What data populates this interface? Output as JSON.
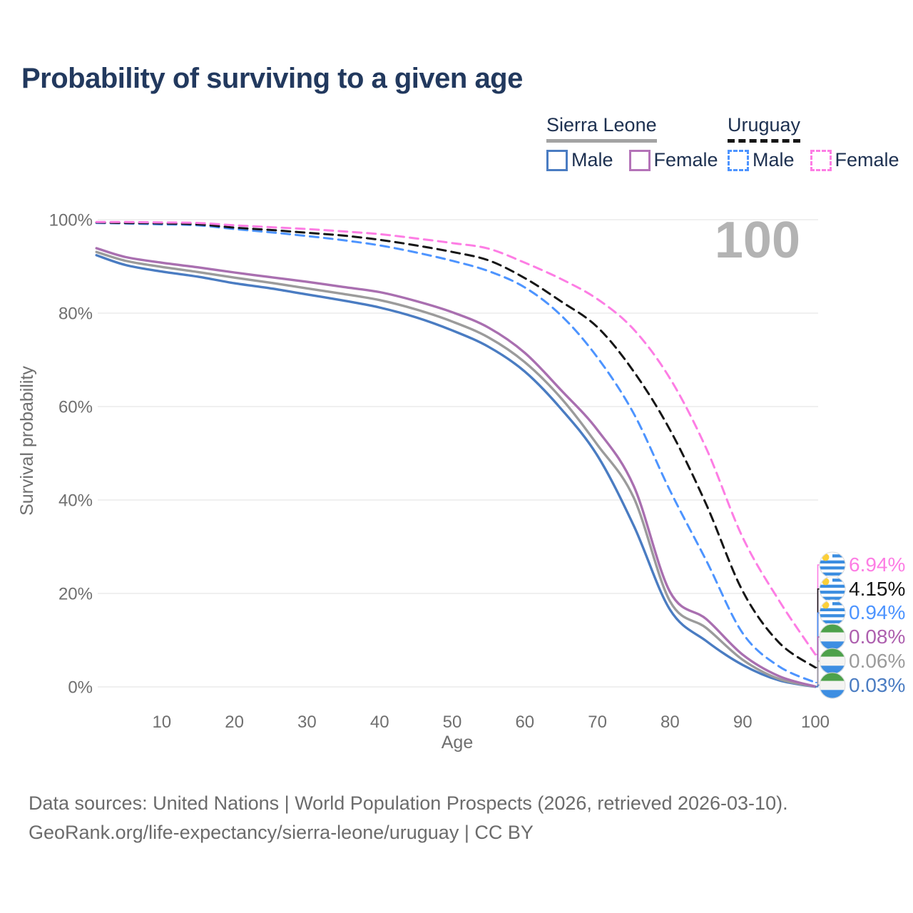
{
  "title": "Probability of surviving to a given age",
  "legend": {
    "groups": [
      {
        "id": "sierra-leone",
        "label": "Sierra Leone",
        "line_style": "solid",
        "underline_color": "#a3a3a3",
        "items": [
          {
            "label": "Male",
            "color": "#4a7cc2"
          },
          {
            "label": "Female",
            "color": "#b473b8"
          }
        ]
      },
      {
        "id": "uruguay",
        "label": "Uruguay",
        "line_style": "dashed",
        "underline_color": "#161616",
        "items": [
          {
            "label": "Male",
            "color": "#4d94ff"
          },
          {
            "label": "Female",
            "color": "#fd7de4"
          }
        ]
      }
    ]
  },
  "watermark": "100",
  "chart_data": {
    "type": "line",
    "title": "Probability of surviving to a given age",
    "xlabel": "Age",
    "ylabel": "Survival probability",
    "xlim": [
      0,
      100
    ],
    "ylim": [
      0,
      100
    ],
    "grid": "horizontal-only",
    "grid_color": "#e7e7e7",
    "axis_text_color": "#6f6f6f",
    "legend_position": "top-right",
    "x": [
      1,
      5,
      10,
      15,
      20,
      25,
      30,
      35,
      40,
      45,
      50,
      55,
      60,
      65,
      70,
      75,
      80,
      85,
      90,
      95,
      100
    ],
    "xticks": [
      10,
      20,
      30,
      40,
      50,
      60,
      70,
      80,
      90,
      100
    ],
    "yticks": [
      {
        "value": 0,
        "label": "0%"
      },
      {
        "value": 20,
        "label": "20%"
      },
      {
        "value": 40,
        "label": "40%"
      },
      {
        "value": 60,
        "label": "60%"
      },
      {
        "value": 80,
        "label": "80%"
      },
      {
        "value": 100,
        "label": "100%"
      }
    ],
    "series": [
      {
        "name": "Sierra Leone Male",
        "country": "Sierra Leone",
        "sex": "Male",
        "color": "#4a7cc2",
        "dash": false,
        "values": [
          92.4,
          90.3,
          88.9,
          87.8,
          86.4,
          85.3,
          84.0,
          82.7,
          81.2,
          79.1,
          76.3,
          72.8,
          67.5,
          59.5,
          49.5,
          34.5,
          16.5,
          9.8,
          4.7,
          1.4,
          0.03
        ]
      },
      {
        "name": "Sierra Leone (both sexes)",
        "country": "Sierra Leone",
        "sex": "Both",
        "color": "#9b9b9b",
        "dash": false,
        "values": [
          93.1,
          91.2,
          89.9,
          88.8,
          87.6,
          86.5,
          85.3,
          84.1,
          82.8,
          80.8,
          78.2,
          74.8,
          69.5,
          61.8,
          51.8,
          40.5,
          18.3,
          12.6,
          5.8,
          1.7,
          0.06
        ]
      },
      {
        "name": "Sierra Leone Female",
        "country": "Sierra Leone",
        "sex": "Female",
        "color": "#a96fb0",
        "dash": false,
        "values": [
          93.9,
          92.0,
          90.8,
          89.8,
          88.7,
          87.7,
          86.7,
          85.6,
          84.5,
          82.6,
          80.2,
          76.9,
          71.5,
          63.5,
          55.0,
          43.0,
          20.3,
          14.5,
          6.9,
          2.3,
          0.08
        ]
      },
      {
        "name": "Uruguay Male",
        "country": "Uruguay",
        "sex": "Male",
        "color": "#4d94ff",
        "dash": true,
        "values": [
          99.3,
          99.2,
          99.0,
          98.8,
          98.0,
          97.3,
          96.5,
          95.6,
          94.5,
          93.0,
          91.2,
          89.0,
          85.5,
          79.5,
          70.5,
          58.5,
          42.0,
          27.0,
          11.5,
          4.4,
          0.94
        ]
      },
      {
        "name": "Uruguay (both sexes)",
        "country": "Uruguay",
        "sex": "Both",
        "color": "#161616",
        "dash": true,
        "values": [
          99.4,
          99.3,
          99.2,
          99.0,
          98.3,
          97.8,
          97.2,
          96.6,
          95.7,
          94.5,
          93.1,
          91.3,
          87.5,
          82.5,
          77.0,
          67.5,
          55.0,
          39.0,
          20.5,
          9.5,
          4.15
        ]
      },
      {
        "name": "Uruguay Female",
        "country": "Uruguay",
        "sex": "Female",
        "color": "#fd7de4",
        "dash": true,
        "values": [
          99.5,
          99.5,
          99.4,
          99.3,
          98.8,
          98.4,
          98.0,
          97.5,
          96.9,
          96.0,
          95.0,
          93.8,
          90.8,
          87.3,
          83.0,
          76.5,
          66.0,
          51.0,
          32.0,
          18.5,
          6.94
        ]
      }
    ],
    "end_labels": [
      {
        "series": "Uruguay Female",
        "text": "6.94%",
        "value": 6.94,
        "color": "#fd7de4",
        "flag": "uruguay"
      },
      {
        "series": "Uruguay (both sexes)",
        "text": "4.15%",
        "value": 4.15,
        "color": "#161616",
        "flag": "uruguay"
      },
      {
        "series": "Uruguay Male",
        "text": "0.94%",
        "value": 0.94,
        "color": "#4d94ff",
        "flag": "uruguay"
      },
      {
        "series": "Sierra Leone Female",
        "text": "0.08%",
        "value": 0.08,
        "color": "#ad5fae",
        "flag": "sierra-leone"
      },
      {
        "series": "Sierra Leone (both sexes)",
        "text": "0.06%",
        "value": 0.06,
        "color": "#9b9b9b",
        "flag": "sierra-leone"
      },
      {
        "series": "Sierra Leone Male",
        "text": "0.03%",
        "value": 0.03,
        "color": "#4a7cc2",
        "flag": "sierra-leone"
      }
    ]
  },
  "footer": {
    "line1": "Data sources: United Nations | World Population Prospects (2026, retrieved 2026-03-10).",
    "line2": "GeoRank.org/life-expectancy/sierra-leone/uruguay | CC BY"
  }
}
